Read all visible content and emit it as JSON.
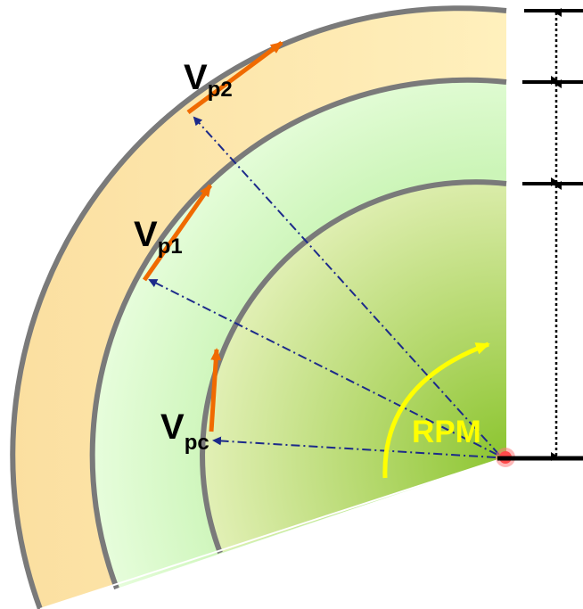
{
  "labels": {
    "vp2": {
      "main": "V",
      "sub": "p2"
    },
    "vp1": {
      "main": "V",
      "sub": "p1"
    },
    "vpc": {
      "main": "V",
      "sub": "pc"
    },
    "rpm": "RPM"
  },
  "colors": {
    "outer_band": "#fde7a6",
    "middle_band": "#d9fbc8",
    "core_light": "#d8eba2",
    "core_dark": "#93c83a",
    "boundary": "#7a7a7a",
    "velocity_arrow": "#f06a00",
    "radius_line": "#1c2a8a",
    "rpm_arrow": "#ffff00",
    "center_point": "#ff5a5a"
  }
}
